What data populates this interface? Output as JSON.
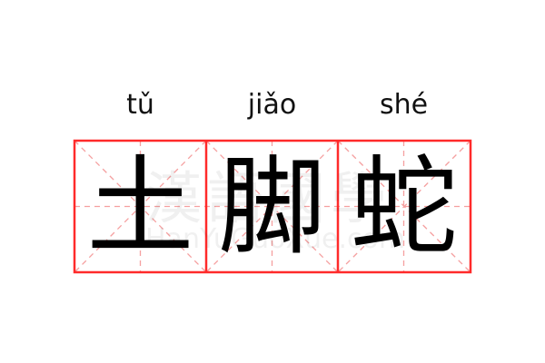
{
  "pinyin": [
    "tǔ",
    "jiǎo",
    "shé"
  ],
  "characters": [
    "土",
    "脚",
    "蛇"
  ],
  "watermark": {
    "chinese": "漢語國學",
    "latin": "HanYuGuoXue.com"
  },
  "colors": {
    "grid_border": "#ff2a2a",
    "grid_guides": "#f5a0a0",
    "text": "#000000"
  }
}
